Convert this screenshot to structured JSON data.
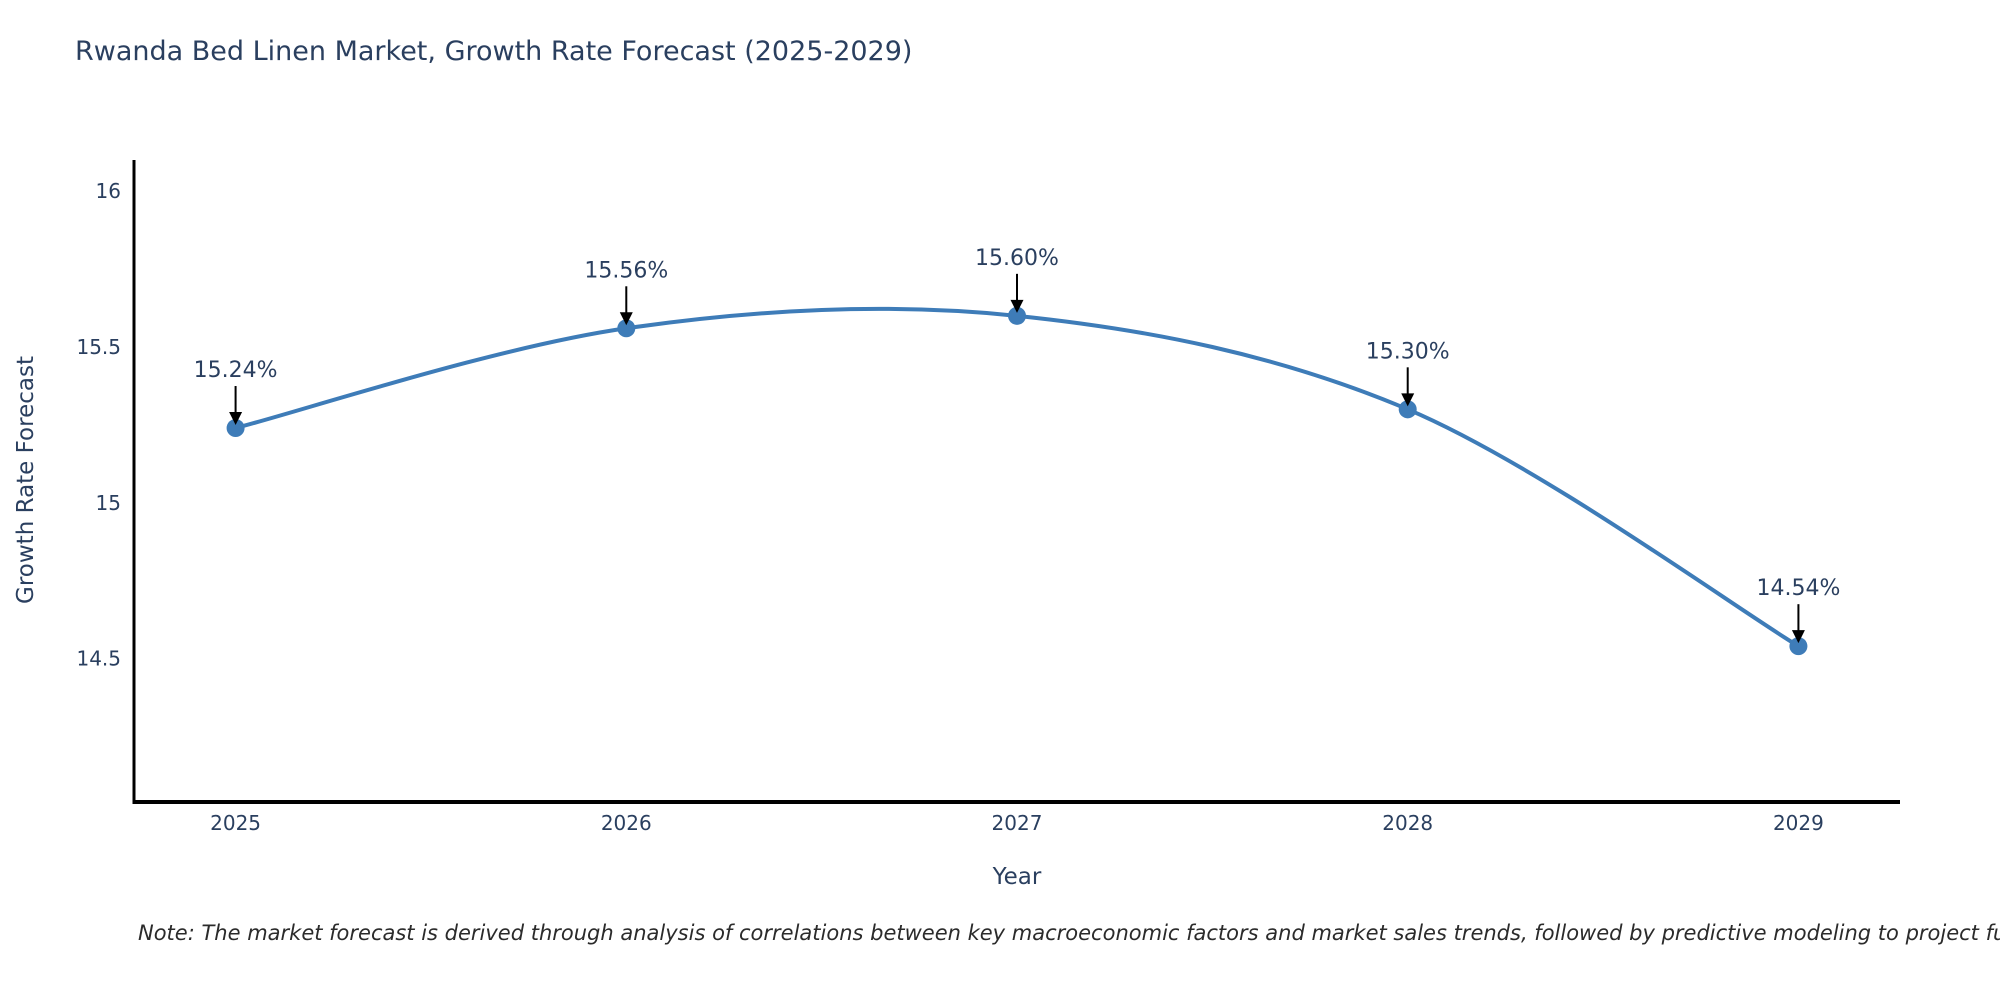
{
  "title": "Rwanda Bed Linen Market, Growth Rate Forecast (2025-2029)",
  "note": "Note: The market forecast is derived through analysis of correlations between key macroeconomic factors and market sales trends, followed by predictive modeling to project future sal",
  "chart_data": {
    "type": "line",
    "line_shape": "spline",
    "x": [
      2025,
      2026,
      2027,
      2028,
      2029
    ],
    "xtick_labels": [
      "2025",
      "2026",
      "2027",
      "2028",
      "2029"
    ],
    "series": [
      {
        "name": "Growth Rate Forecast",
        "values": [
          15.24,
          15.56,
          15.6,
          15.3,
          14.54
        ]
      }
    ],
    "point_labels": [
      "15.24%",
      "15.56%",
      "15.60%",
      "15.30%",
      "14.54%"
    ],
    "title": "Rwanda Bed Linen Market, Growth Rate Forecast (2025-2029)",
    "xlabel": "Year",
    "ylabel": "Growth Rate Forecast",
    "yticks": [
      16,
      15.5,
      15,
      14.5
    ],
    "ytick_labels": [
      "16",
      "15.5",
      "15",
      "14.5"
    ],
    "xlim": [
      2024.74,
      2029.26
    ],
    "ylim": [
      14.04,
      16.1
    ],
    "grid": false,
    "legend_position": "none",
    "annotations_have_arrows": true,
    "colors": {
      "line": "#3e7cb8",
      "marker": "#3e7cb8",
      "text": "#2a3f5f",
      "axis": "#000000",
      "arrow": "#000000",
      "note_text": "#2b2b2b",
      "background": "#ffffff"
    }
  }
}
